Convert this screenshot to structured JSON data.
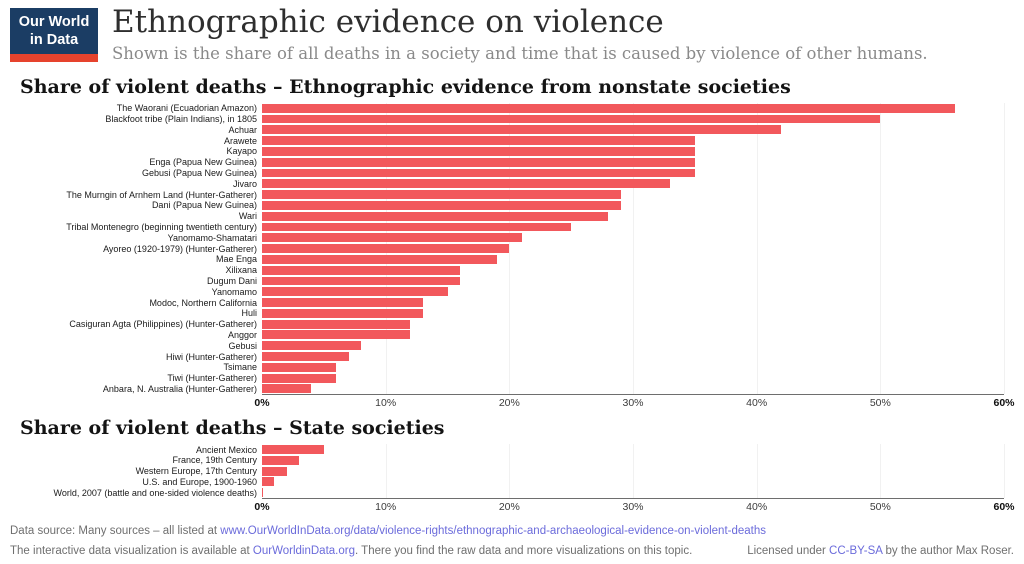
{
  "header": {
    "logo_line1": "Our World",
    "logo_line2": "in Data",
    "title": "Ethnographic evidence on violence",
    "subtitle": "Shown is the share of all deaths in a society and time that is caused by violence of other humans."
  },
  "colors": {
    "bar": "#f2585c",
    "logo_navy": "#1b3d64",
    "logo_stripe": "#e6432d",
    "link": "#6b6bdb",
    "gridline": "#f1f1f1",
    "axis_line": "#6e6e6e"
  },
  "chart_data": [
    {
      "type": "bar",
      "orientation": "horizontal",
      "title": "Share of violent deaths – Ethnographic evidence from nonstate societies",
      "unit": "%",
      "xlim": [
        0,
        60
      ],
      "grid": true,
      "x_ticks": [
        "0%",
        "10%",
        "20%",
        "30%",
        "40%",
        "50%",
        "60%"
      ],
      "categories": [
        "The Waorani (Ecuadorian Amazon)",
        "Blackfoot tribe (Plain Indians), in 1805",
        "Achuar",
        "Arawete",
        "Kayapo",
        "Enga (Papua New Guinea)",
        "Gebusi (Papua New Guinea)",
        "Jivaro",
        "The Murngin of Arnhem Land (Hunter-Gatherer)",
        "Dani (Papua New Guinea)",
        "Wari",
        "Tribal Montenegro (beginning twentieth century)",
        "Yanomamo-Shamatari",
        "Ayoreo (1920-1979) (Hunter-Gatherer)",
        "Mae Enga",
        "Xilixana",
        "Dugum Dani",
        "Yanomamo",
        "Modoc, Northern California",
        "Huli",
        "Casiguran Agta (Philippines) (Hunter-Gatherer)",
        "Anggor",
        "Gebusi",
        "Hiwi (Hunter-Gatherer)",
        "Tsimane",
        "Tiwi (Hunter-Gatherer)",
        "Anbara, N. Australia (Hunter-Gatherer)"
      ],
      "values": [
        56,
        50,
        42,
        35,
        35,
        35,
        35,
        33,
        29,
        29,
        28,
        25,
        21,
        20,
        19,
        16,
        16,
        15,
        13,
        13,
        12,
        12,
        8,
        7,
        6,
        6,
        4
      ]
    },
    {
      "type": "bar",
      "orientation": "horizontal",
      "title": "Share of violent deaths – State societies",
      "unit": "%",
      "xlim": [
        0,
        60
      ],
      "grid": true,
      "x_ticks": [
        "0%",
        "10%",
        "20%",
        "30%",
        "40%",
        "50%",
        "60%"
      ],
      "categories": [
        "Ancient Mexico",
        "France, 19th Century",
        "Western Europe, 17th Century",
        "U.S. and Europe, 1900-1960",
        "World, 2007 (battle and one-sided violence deaths)"
      ],
      "values": [
        5,
        3,
        2,
        1,
        0.1
      ]
    }
  ],
  "footer": {
    "line1_prefix": "Data source: Many sources – all listed at ",
    "line1_link": "www.OurWorldInData.org/data/violence-rights/ethnographic-and-archaeological-evidence-on-violent-deaths",
    "line2_prefix": "The interactive data visualization is available at ",
    "line2_link": "OurWorldinData.org",
    "line2_suffix": ". There you find the raw data and more visualizations on this topic.",
    "license_prefix": "Licensed under ",
    "license_link": "CC-BY-SA",
    "license_suffix": " by the author Max Roser."
  }
}
